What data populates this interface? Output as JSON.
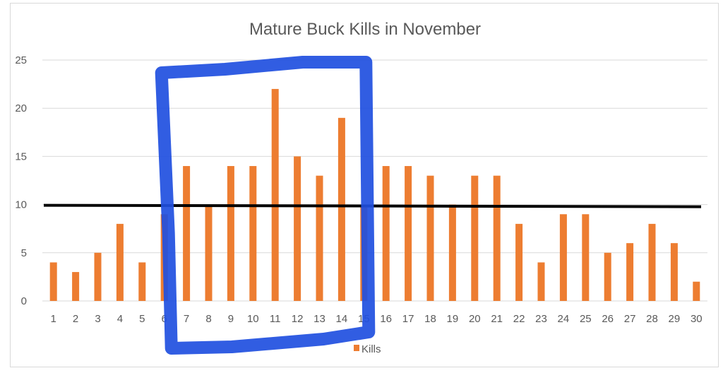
{
  "chart_data": {
    "type": "bar",
    "title": "Mature Buck Kills in November",
    "categories": [
      "1",
      "2",
      "3",
      "4",
      "5",
      "6",
      "7",
      "8",
      "9",
      "10",
      "11",
      "12",
      "13",
      "14",
      "15",
      "16",
      "17",
      "18",
      "19",
      "20",
      "21",
      "22",
      "23",
      "24",
      "25",
      "26",
      "27",
      "28",
      "29",
      "30"
    ],
    "series": [
      {
        "name": "Kills",
        "color": "#ED7D31",
        "values": [
          4,
          3,
          5,
          8,
          4,
          9,
          14,
          10,
          14,
          14,
          22,
          15,
          13,
          19,
          10,
          14,
          14,
          13,
          10,
          13,
          13,
          8,
          4,
          9,
          9,
          5,
          6,
          8,
          6,
          2
        ]
      }
    ],
    "ylim": [
      0,
      25
    ],
    "yticks": [
      "0",
      "5",
      "10",
      "15",
      "20",
      "25"
    ],
    "grid": true,
    "legend_position": "bottom",
    "annotations": {
      "reference_line": {
        "value": 10,
        "color": "#000000"
      },
      "highlight_box": {
        "from_category": "6",
        "to_category": "15",
        "color": "#1F4FE0"
      }
    }
  }
}
